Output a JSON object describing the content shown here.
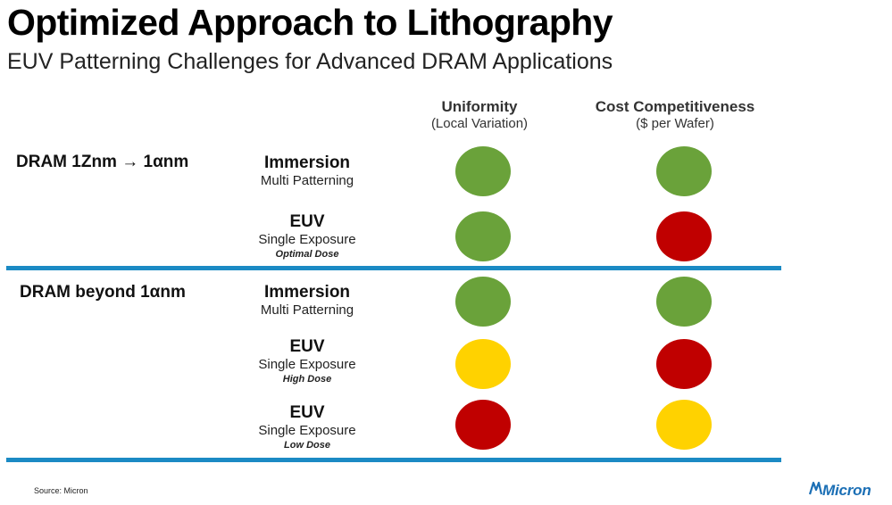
{
  "title": "Optimized Approach to Lithography",
  "subtitle": "EUV Patterning Challenges for Advanced DRAM Applications",
  "columns": [
    {
      "label": "Uniformity",
      "sublabel": "(Local Variation)"
    },
    {
      "label": "Cost Competitiveness",
      "sublabel": "($ per Wafer)"
    }
  ],
  "groups": [
    {
      "label": "DRAM 1Znm → 1αnm"
    },
    {
      "label": "DRAM beyond 1αnm"
    }
  ],
  "rows": [
    {
      "group": 0,
      "method": "Immersion",
      "desc": "Multi Patterning",
      "dose": "",
      "uniformity": "green",
      "cost": "green"
    },
    {
      "group": 0,
      "method": "EUV",
      "desc": "Single Exposure",
      "dose": "Optimal Dose",
      "uniformity": "green",
      "cost": "red"
    },
    {
      "group": 1,
      "method": "Immersion",
      "desc": "Multi Patterning",
      "dose": "",
      "uniformity": "green",
      "cost": "green"
    },
    {
      "group": 1,
      "method": "EUV",
      "desc": "Single Exposure",
      "dose": "High Dose",
      "uniformity": "yellow",
      "cost": "red"
    },
    {
      "group": 1,
      "method": "EUV",
      "desc": "Single Exposure",
      "dose": "Low Dose",
      "uniformity": "red",
      "cost": "yellow"
    }
  ],
  "colors": {
    "green": "#6aa23a",
    "red": "#c00000",
    "yellow": "#ffd200",
    "divider": "#1b8ac4",
    "brand": "#1b6fb5"
  },
  "footer": {
    "source": "Source: Micron",
    "logo_text": "Micron"
  }
}
